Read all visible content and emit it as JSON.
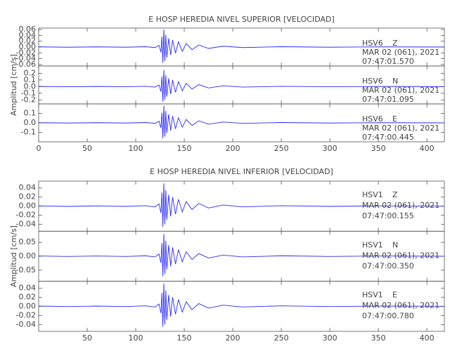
{
  "chart_data": [
    {
      "type": "line",
      "title": "E HOSP HEREDIA NIVEL SUPERIOR [VELOCIDAD]",
      "ylabel": "Amplitud [cm/s]",
      "xlim": [
        0,
        418
      ],
      "xticks": [
        0,
        50,
        100,
        150,
        200,
        250,
        300,
        350,
        400
      ],
      "color": "#2a2aff",
      "x": [
        0,
        30,
        60,
        90,
        110,
        120,
        124,
        126,
        127,
        128,
        129,
        130,
        131,
        132,
        134,
        136,
        138,
        141,
        144,
        148,
        152,
        158,
        165,
        175,
        190,
        210,
        250,
        300,
        350,
        418
      ],
      "panels": [
        {
          "station": "HSV6",
          "component": "Z",
          "date": "MAR 02 (061), 2021",
          "time": "07:47:01.570",
          "ylim": [
            -0.065,
            0.065
          ],
          "yticks": [
            0.06,
            0.04,
            0.02,
            {
              "value": 0,
              "label": "0.00"
            },
            -0.02,
            -0.04,
            -0.06
          ],
          "values": [
            0.0006,
            -0.0006,
            0.0006,
            -0.0006,
            0.0012,
            -0.0018,
            0.006,
            -0.018,
            0.036,
            -0.054,
            0.06,
            -0.048,
            0.042,
            -0.036,
            0.03,
            -0.027,
            0.024,
            -0.021,
            0.018,
            -0.015,
            0.012,
            -0.009,
            0.0072,
            -0.0048,
            0.003,
            -0.0018,
            0.0012,
            -0.0006,
            0.0006,
            0
          ]
        },
        {
          "station": "HSV6",
          "component": "N",
          "date": "MAR 02 (061), 2021",
          "time": "07:47:01.095",
          "ylim": [
            -0.26,
            0.31
          ],
          "yticks": [
            0.2,
            0.1,
            {
              "value": 0,
              "label": "0.0"
            },
            -0.1,
            -0.2
          ],
          "values": [
            0.0025,
            -0.0025,
            0.0025,
            -0.0025,
            0.005,
            -0.0075,
            0.025,
            -0.075,
            0.15,
            -0.225,
            0.25,
            -0.2,
            0.175,
            -0.15,
            0.125,
            -0.1125,
            0.1,
            -0.0875,
            0.075,
            -0.0625,
            0.05,
            -0.0375,
            0.03,
            -0.02,
            0.0125,
            -0.0075,
            0.005,
            -0.0025,
            0.0025,
            0
          ]
        },
        {
          "station": "HSV6",
          "component": "E",
          "date": "MAR 02 (061), 2021",
          "time": "07:47:00.445",
          "ylim": [
            -0.2,
            0.2
          ],
          "yticks": [
            0.1,
            {
              "value": 0,
              "label": "0.0"
            },
            -0.1
          ],
          "values": [
            0.0018,
            -0.0018,
            0.0018,
            -0.0018,
            0.0036,
            -0.0054,
            0.018,
            -0.054,
            0.108,
            -0.162,
            0.18,
            -0.144,
            0.126,
            -0.108,
            0.09,
            -0.081,
            0.072,
            -0.063,
            0.054,
            -0.045,
            0.036,
            -0.027,
            0.0216,
            -0.0144,
            0.009,
            -0.0054,
            0.0036,
            -0.0018,
            0.0018,
            0
          ]
        }
      ]
    },
    {
      "type": "line",
      "title": "E HOSP HEREDIA NIVEL INFERIOR [VELOCIDAD]",
      "ylabel": "Amplitud [cm/s]",
      "xlim": [
        0,
        418
      ],
      "xticks": [
        50,
        100,
        150,
        200,
        250,
        300,
        350,
        400
      ],
      "color": "#2a2aff",
      "x": [
        0,
        30,
        60,
        90,
        110,
        120,
        124,
        126,
        127,
        128,
        129,
        130,
        131,
        132,
        134,
        136,
        138,
        141,
        144,
        148,
        152,
        158,
        165,
        175,
        190,
        210,
        250,
        300,
        350,
        418
      ],
      "panels": [
        {
          "station": "HSV1",
          "component": "Z",
          "date": "MAR 02 (061), 2021",
          "time": "07:47:00.155",
          "ylim": [
            -0.055,
            0.055
          ],
          "yticks": [
            0.04,
            0.02,
            {
              "value": 0,
              "label": "0.00"
            },
            -0.02,
            -0.04
          ],
          "values": [
            0.0005,
            -0.0005,
            0.0005,
            -0.0005,
            0.001,
            -0.0015,
            0.005,
            -0.015,
            0.03,
            -0.045,
            0.05,
            -0.04,
            0.035,
            -0.03,
            0.025,
            -0.0225,
            0.02,
            -0.0175,
            0.015,
            -0.0125,
            0.01,
            -0.0075,
            0.006,
            -0.004,
            0.0025,
            -0.0015,
            0.001,
            -0.0005,
            0.0005,
            0
          ]
        },
        {
          "station": "HSV1",
          "component": "N",
          "date": "MAR 02 (061), 2021",
          "time": "07:47:00.350",
          "ylim": [
            -0.09,
            0.09
          ],
          "yticks": [
            0.05,
            {
              "value": 0,
              "label": "0.00"
            },
            -0.05
          ],
          "values": [
            0.0008,
            -0.0008,
            0.0008,
            -0.0008,
            0.0016,
            -0.0024,
            0.008,
            -0.024,
            0.048,
            -0.072,
            0.08,
            -0.064,
            0.056,
            -0.048,
            0.04,
            -0.036,
            0.032,
            -0.028,
            0.024,
            -0.02,
            0.016,
            -0.012,
            0.0096,
            -0.0064,
            0.004,
            -0.0024,
            0.0016,
            -0.0008,
            0.0008,
            0
          ]
        },
        {
          "station": "HSV1",
          "component": "E",
          "date": "MAR 02 (061), 2021",
          "time": "07:47:00.780",
          "ylim": [
            -0.055,
            0.055
          ],
          "yticks": [
            0.04,
            0.02,
            {
              "value": 0,
              "label": "0.00"
            },
            -0.02,
            -0.04
          ],
          "values": [
            0.0005,
            -0.0005,
            0.0005,
            -0.0005,
            0.001,
            -0.0015,
            0.005,
            -0.015,
            0.03,
            -0.045,
            0.05,
            -0.04,
            0.035,
            -0.03,
            0.025,
            -0.0225,
            0.02,
            -0.0175,
            0.015,
            -0.0125,
            0.01,
            -0.0075,
            0.006,
            -0.004,
            0.0025,
            -0.0015,
            0.001,
            -0.0005,
            0.0005,
            0
          ]
        }
      ]
    }
  ]
}
